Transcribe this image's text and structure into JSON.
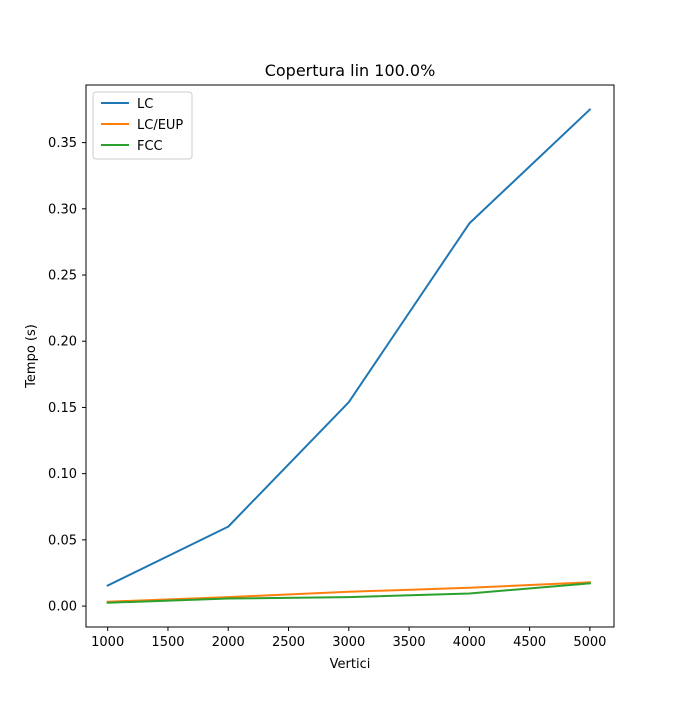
{
  "chart_data": {
    "type": "line",
    "title": "Copertura lin 100.0%",
    "xlabel": "Vertici",
    "ylabel": "Tempo (s)",
    "x": [
      1000,
      2000,
      3000,
      4000,
      5000
    ],
    "xlim": [
      820,
      5200
    ],
    "ylim": [
      -0.0158,
      0.3935
    ],
    "xticks": [
      1000,
      1500,
      2000,
      2500,
      3000,
      3500,
      4000,
      4500,
      5000
    ],
    "xtick_labels": [
      "1000",
      "1500",
      "2000",
      "2500",
      "3000",
      "3500",
      "4000",
      "4500",
      "5000"
    ],
    "yticks": [
      0.0,
      0.05,
      0.1,
      0.15,
      0.2,
      0.25,
      0.3,
      0.35
    ],
    "ytick_labels": [
      "0.00",
      "0.05",
      "0.10",
      "0.15",
      "0.20",
      "0.25",
      "0.30",
      "0.35"
    ],
    "grid": false,
    "legend_position": "upper-left",
    "series": [
      {
        "name": "LC",
        "color": "#1f77b4",
        "values": [
          0.0155,
          0.06,
          0.154,
          0.289,
          0.375
        ]
      },
      {
        "name": "LC/EUP",
        "color": "#ff7f0e",
        "values": [
          0.0033,
          0.0068,
          0.0108,
          0.0138,
          0.018
        ]
      },
      {
        "name": "FCC",
        "color": "#2ca02c",
        "values": [
          0.0025,
          0.0057,
          0.0068,
          0.0095,
          0.0172
        ]
      }
    ]
  }
}
